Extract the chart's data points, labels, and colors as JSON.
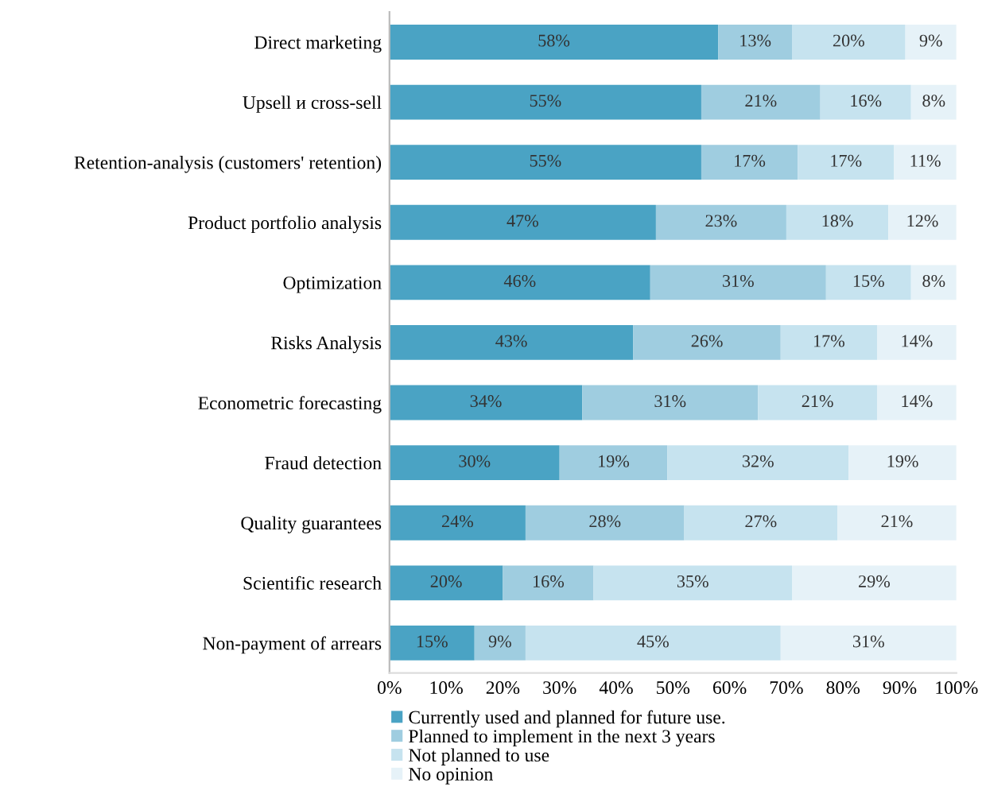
{
  "chart_data": {
    "type": "bar",
    "orientation": "horizontal",
    "stacked": true,
    "legend": "bottom",
    "grid": false,
    "categories": [
      "Direct marketing",
      "Upsell и cross-sell",
      "Retention-analysis (customers' retention)",
      "Product portfolio analysis",
      "Optimization",
      "Risks Analysis",
      "Econometric forecasting",
      "Fraud detection",
      "Quality guarantees",
      "Scientific research",
      "Non-payment of arrears"
    ],
    "xlim": [
      0,
      100
    ],
    "xticks": [
      {
        "value": 0,
        "label": "0%"
      },
      {
        "value": 10,
        "label": "10%"
      },
      {
        "value": 20,
        "label": "20%"
      },
      {
        "value": 30,
        "label": "30%"
      },
      {
        "value": 40,
        "label": "40%"
      },
      {
        "value": 50,
        "label": "50%"
      },
      {
        "value": 60,
        "label": "60%"
      },
      {
        "value": 70,
        "label": "70%"
      },
      {
        "value": 80,
        "label": "80%"
      },
      {
        "value": 90,
        "label": "90%"
      },
      {
        "value": 100,
        "label": "100%"
      }
    ],
    "series": [
      {
        "name": "Currently used and planned for future use.",
        "color": "#4aa3c4",
        "values": [
          58,
          55,
          55,
          47,
          46,
          43,
          34,
          30,
          24,
          20,
          15
        ],
        "value_labels": [
          "58%",
          "55%",
          "55%",
          "47%",
          "46%",
          "43%",
          "34%",
          "30%",
          "24%",
          "20%",
          "15%"
        ]
      },
      {
        "name": "Planned to implement in the next 3 years",
        "color": "#9fcde0",
        "values": [
          13,
          21,
          17,
          23,
          31,
          26,
          31,
          19,
          28,
          16,
          9
        ],
        "value_labels": [
          "13%",
          "21%",
          "17%",
          "23%",
          "31%",
          "26%",
          "31%",
          "19%",
          "28%",
          "16%",
          "9%"
        ]
      },
      {
        "name": "Not planned to use",
        "color": "#c6e3ef",
        "values": [
          20,
          16,
          17,
          18,
          15,
          17,
          21,
          32,
          27,
          35,
          45
        ],
        "value_labels": [
          "20%",
          "16%",
          "17%",
          "18%",
          "15%",
          "17%",
          "21%",
          "32%",
          "27%",
          "35%",
          "45%"
        ]
      },
      {
        "name": "No opinion",
        "color": "#e6f2f8",
        "values": [
          9,
          8,
          11,
          12,
          8,
          14,
          14,
          19,
          21,
          29,
          31
        ],
        "value_labels": [
          "9%",
          "8%",
          "11%",
          "12%",
          "8%",
          "14%",
          "14%",
          "19%",
          "21%",
          "29%",
          "31%"
        ]
      }
    ]
  }
}
